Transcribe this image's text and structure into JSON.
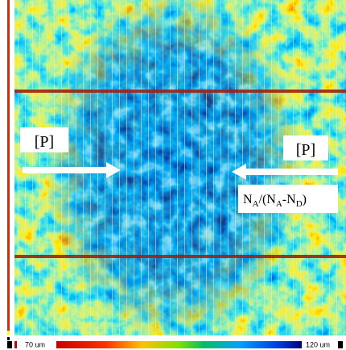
{
  "labels": {
    "left_label": "[P]",
    "right_label": "[P]",
    "ratio_label": [
      "N",
      "A",
      "/(N",
      "A",
      "-N",
      "D",
      ")"
    ]
  },
  "scale": {
    "min_label": "70 um",
    "max_label": "120 um"
  }
}
